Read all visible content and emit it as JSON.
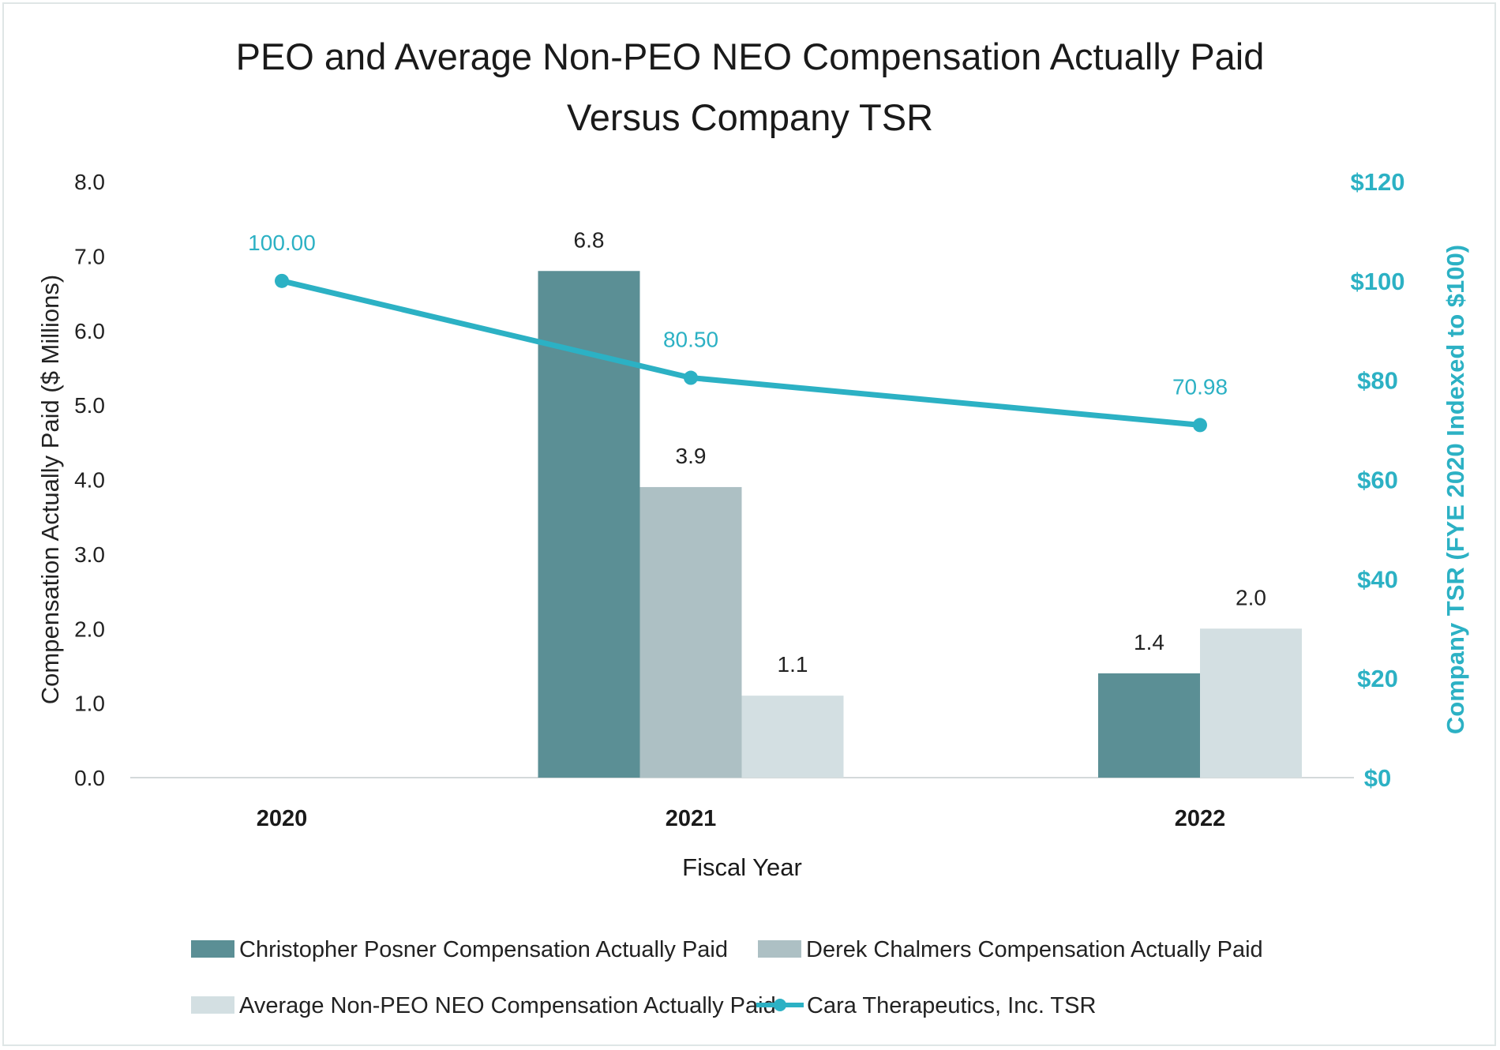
{
  "chart_data": {
    "type": "bar",
    "title": [
      "PEO and Average Non-PEO NEO Compensation Actually Paid",
      "Versus Company TSR"
    ],
    "xlabel": "Fiscal Year",
    "ylabel": "Compensation Actually Paid ($ Millions)",
    "y2label": "Company TSR (FYE 2020 Indexed to $100)",
    "categories": [
      "2020",
      "2021",
      "2022"
    ],
    "ylim": [
      0,
      8
    ],
    "y_ticks": [
      "0.0",
      "1.0",
      "2.0",
      "3.0",
      "4.0",
      "5.0",
      "6.0",
      "7.0",
      "8.0"
    ],
    "y2lim": [
      0,
      120
    ],
    "y2_ticks": [
      "$0",
      "$20",
      "$40",
      "$60",
      "$80",
      "$100",
      "$120"
    ],
    "grid": false,
    "legend_position": "bottom",
    "series": [
      {
        "name": "Christopher Posner Compensation Actually Paid",
        "kind": "bar",
        "color": "#5b8f95",
        "values": [
          null,
          6.8,
          1.4
        ],
        "labels": [
          "",
          "6.8",
          "1.4"
        ]
      },
      {
        "name": "Derek Chalmers Compensation Actually Paid",
        "kind": "bar",
        "color": "#adc0c4",
        "values": [
          null,
          3.9,
          null
        ],
        "labels": [
          "",
          "3.9",
          ""
        ]
      },
      {
        "name": "Average Non-PEO NEO Compensation Actually Paid",
        "kind": "bar",
        "color": "#d3dfe2",
        "values": [
          null,
          1.1,
          2.0
        ],
        "labels": [
          "",
          "1.1",
          "2.0"
        ]
      },
      {
        "name": "Cara Therapeutics, Inc. TSR",
        "kind": "line",
        "axis": "right",
        "color": "#2cb1c4",
        "values": [
          100.0,
          80.5,
          70.98
        ],
        "labels": [
          "100.00",
          "80.50",
          "70.98"
        ]
      }
    ]
  }
}
